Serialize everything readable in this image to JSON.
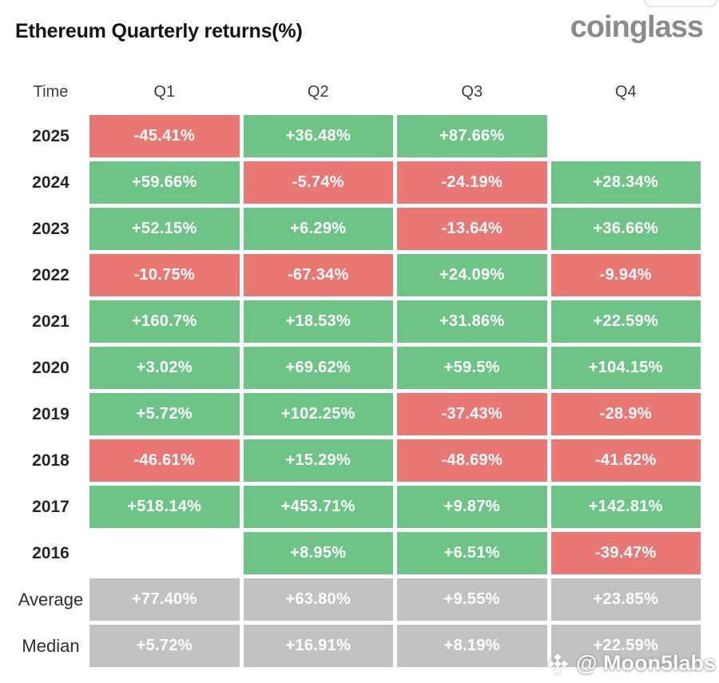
{
  "header": {
    "title": "Ethereum Quarterly returns(%)",
    "logo": "coinglass"
  },
  "colors": {
    "positive": "#6ec487",
    "negative": "#e97874",
    "summary": "#c2c2c2",
    "cell_text": "#ffffff"
  },
  "watermark": {
    "text": "@ Moon5labs",
    "icon": "binance-diamond"
  },
  "chart_data": {
    "type": "heatmap",
    "title": "Ethereum Quarterly returns(%)",
    "columns": [
      "Time",
      "Q1",
      "Q2",
      "Q3",
      "Q4"
    ],
    "rows": [
      {
        "label": "2025",
        "type": "year",
        "values": [
          "-45.41%",
          "+36.48%",
          "+87.66%",
          null
        ]
      },
      {
        "label": "2024",
        "type": "year",
        "values": [
          "+59.66%",
          "-5.74%",
          "-24.19%",
          "+28.34%"
        ]
      },
      {
        "label": "2023",
        "type": "year",
        "values": [
          "+52.15%",
          "+6.29%",
          "-13.64%",
          "+36.66%"
        ]
      },
      {
        "label": "2022",
        "type": "year",
        "values": [
          "-10.75%",
          "-67.34%",
          "+24.09%",
          "-9.94%"
        ]
      },
      {
        "label": "2021",
        "type": "year",
        "values": [
          "+160.7%",
          "+18.53%",
          "+31.86%",
          "+22.59%"
        ]
      },
      {
        "label": "2020",
        "type": "year",
        "values": [
          "+3.02%",
          "+69.62%",
          "+59.5%",
          "+104.15%"
        ]
      },
      {
        "label": "2019",
        "type": "year",
        "values": [
          "+5.72%",
          "+102.25%",
          "-37.43%",
          "-28.9%"
        ]
      },
      {
        "label": "2018",
        "type": "year",
        "values": [
          "-46.61%",
          "+15.29%",
          "-48.69%",
          "-41.62%"
        ]
      },
      {
        "label": "2017",
        "type": "year",
        "values": [
          "+518.14%",
          "+453.71%",
          "+9.87%",
          "+142.81%"
        ]
      },
      {
        "label": "2016",
        "type": "year",
        "values": [
          null,
          "+8.95%",
          "+6.51%",
          "-39.47%"
        ]
      },
      {
        "label": "Average",
        "type": "summary",
        "values": [
          "+77.40%",
          "+63.80%",
          "+9.55%",
          "+23.85%"
        ]
      },
      {
        "label": "Median",
        "type": "summary",
        "values": [
          "+5.72%",
          "+16.91%",
          "+8.19%",
          "+22.59%"
        ]
      }
    ]
  }
}
